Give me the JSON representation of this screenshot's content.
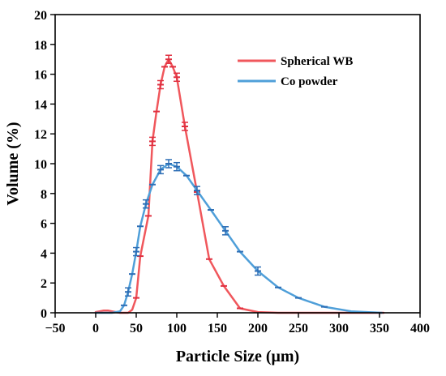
{
  "chart_data": {
    "type": "line",
    "xlabel": "Particle Size (μm)",
    "ylabel": "Volume (%)",
    "xlim": [
      -50,
      400
    ],
    "ylim": [
      0,
      20
    ],
    "x_ticks": [
      -50,
      0,
      50,
      100,
      150,
      200,
      250,
      300,
      350,
      400
    ],
    "y_ticks": [
      0,
      2,
      4,
      6,
      8,
      10,
      12,
      14,
      16,
      18,
      20
    ],
    "grid": false,
    "legend_position": "top-right",
    "series": [
      {
        "name": "Spherical WB",
        "color": "#f0575c",
        "errorbar_color": "#e03040",
        "points": [
          {
            "x": 0,
            "y": 0.05
          },
          {
            "x": 5,
            "y": 0.1
          },
          {
            "x": 10,
            "y": 0.15
          },
          {
            "x": 15,
            "y": 0.15
          },
          {
            "x": 20,
            "y": 0.1
          },
          {
            "x": 25,
            "y": 0.05
          },
          {
            "x": 30,
            "y": 0
          },
          {
            "x": 35,
            "y": 0
          },
          {
            "x": 40,
            "y": 0
          },
          {
            "x": 45,
            "y": 0.2
          },
          {
            "x": 50,
            "y": 1.0
          },
          {
            "x": 55,
            "y": 3.8
          },
          {
            "x": 65,
            "y": 6.5
          },
          {
            "x": 70,
            "y": 11.5
          },
          {
            "x": 75,
            "y": 13.5
          },
          {
            "x": 80,
            "y": 15.3
          },
          {
            "x": 85,
            "y": 16.5
          },
          {
            "x": 90,
            "y": 17.0
          },
          {
            "x": 95,
            "y": 16.5
          },
          {
            "x": 100,
            "y": 15.8
          },
          {
            "x": 110,
            "y": 12.5
          },
          {
            "x": 125,
            "y": 8.1
          },
          {
            "x": 140,
            "y": 3.6
          },
          {
            "x": 158,
            "y": 1.8
          },
          {
            "x": 178,
            "y": 0.3
          },
          {
            "x": 200,
            "y": 0.05
          },
          {
            "x": 225,
            "y": 0
          },
          {
            "x": 250,
            "y": 0
          },
          {
            "x": 280,
            "y": 0
          },
          {
            "x": 310,
            "y": 0
          },
          {
            "x": 340,
            "y": 0
          },
          {
            "x": 355,
            "y": 0
          }
        ],
        "errorbar_x": [
          70,
          80,
          90,
          100,
          110
        ]
      },
      {
        "name": "Co powder",
        "color": "#4f9fd9",
        "errorbar_color": "#2c6db5",
        "points": [
          {
            "x": 0,
            "y": 0
          },
          {
            "x": 20,
            "y": 0
          },
          {
            "x": 30,
            "y": 0.1
          },
          {
            "x": 35,
            "y": 0.5
          },
          {
            "x": 40,
            "y": 1.4
          },
          {
            "x": 45,
            "y": 2.6
          },
          {
            "x": 50,
            "y": 4.1
          },
          {
            "x": 55,
            "y": 5.8
          },
          {
            "x": 62,
            "y": 7.3
          },
          {
            "x": 70,
            "y": 8.6
          },
          {
            "x": 80,
            "y": 9.6
          },
          {
            "x": 90,
            "y": 10.0
          },
          {
            "x": 100,
            "y": 9.8
          },
          {
            "x": 112,
            "y": 9.2
          },
          {
            "x": 125,
            "y": 8.2
          },
          {
            "x": 142,
            "y": 6.9
          },
          {
            "x": 160,
            "y": 5.5
          },
          {
            "x": 178,
            "y": 4.1
          },
          {
            "x": 200,
            "y": 2.8
          },
          {
            "x": 225,
            "y": 1.7
          },
          {
            "x": 250,
            "y": 1.0
          },
          {
            "x": 282,
            "y": 0.4
          },
          {
            "x": 315,
            "y": 0.1
          },
          {
            "x": 353,
            "y": 0
          }
        ],
        "errorbar_x": [
          40,
          50,
          62,
          80,
          90,
          100,
          125,
          160,
          200
        ]
      }
    ]
  }
}
